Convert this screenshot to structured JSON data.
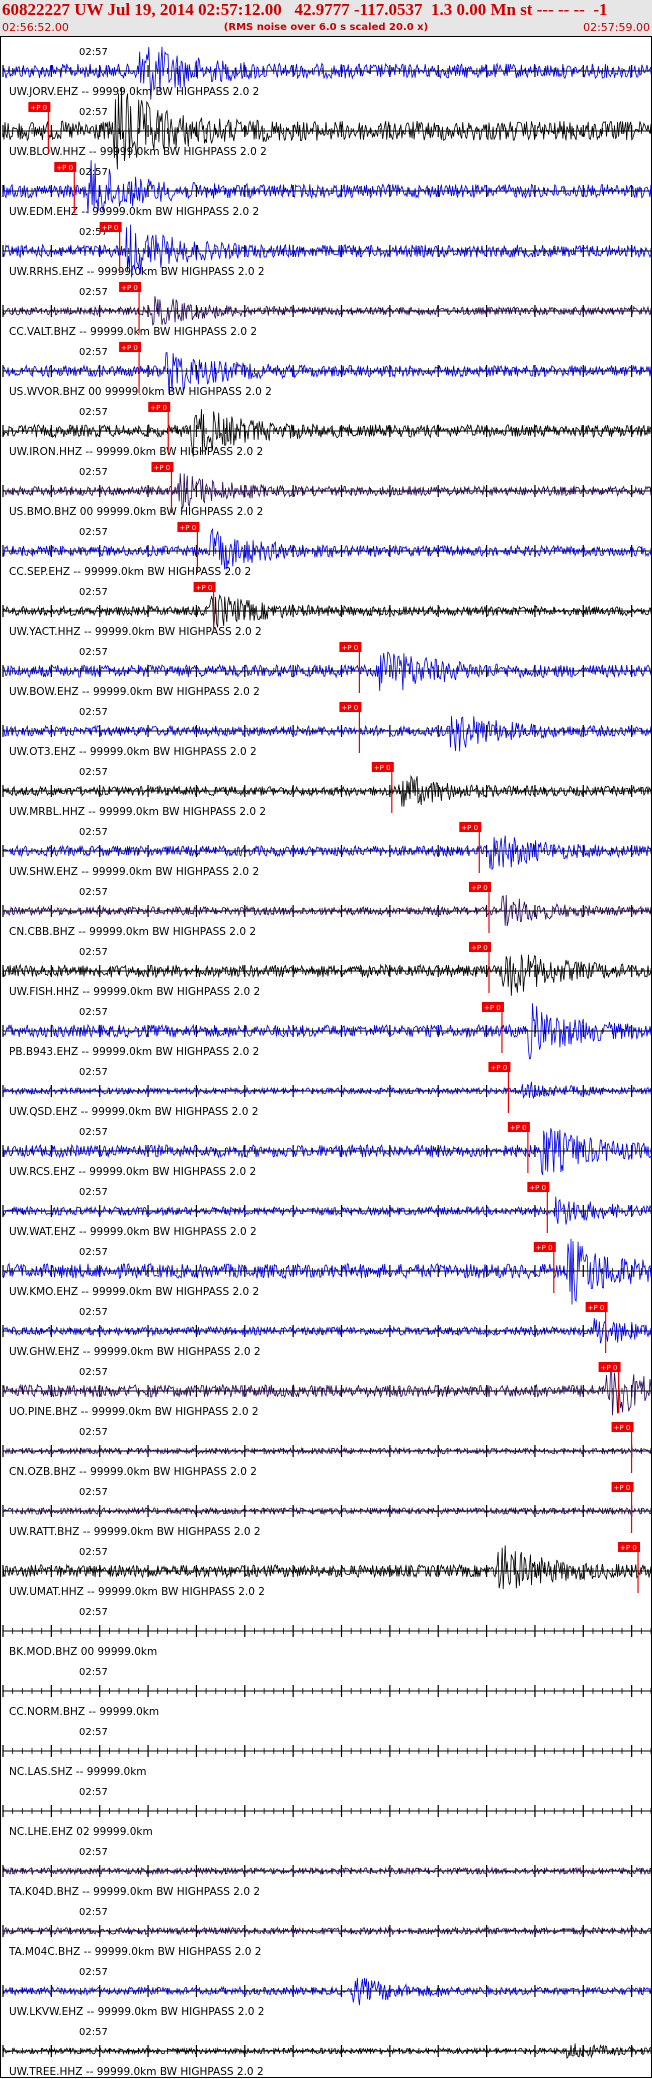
{
  "header": {
    "title": "60822227 UW Jul 19, 2014 02:57:12.00   42.9777 -117.0537  1.3 0.00 Mn st --- -- --  -1",
    "time_start": "02:56:52.00",
    "rms_note": "(RMS noise over 6.0 s scaled 20.0 x)",
    "time_end": "02:57:59.00"
  },
  "colors": {
    "red": "#cc0000",
    "blue": "#0000e6",
    "black": "#000000",
    "purple": "#2a0a5c",
    "pick_fill": "#ee0000"
  },
  "chart_data": {
    "type": "line",
    "title": "60822227 UW Jul 19, 2014 02:57:12.00   42.9777 -117.0537  1.3 0.00 Mn st --- -- --  -1",
    "x_range": [
      "02:56:52.00",
      "02:57:59.00"
    ],
    "tick_label": "02:57",
    "pick_label": "+P 0",
    "traces": [
      {
        "label": "UW.JORV.EHZ -- 99999.0km BW  HIGHPASS  2.0  2",
        "color": "blue",
        "amp": 0.55,
        "event": 0.22,
        "pick": null
      },
      {
        "label": "UW.BLOW.HHZ -- 99999.0km BW  HIGHPASS  2.0  2",
        "color": "black",
        "amp": 0.8,
        "event": 0.18,
        "pick": 0.07
      },
      {
        "label": "UW.EDM.EHZ -- 99999.0km BW  HIGHPASS  2.0  2",
        "color": "blue",
        "amp": 0.5,
        "event": 0.14,
        "pick": 0.11
      },
      {
        "label": "UW.RRHS.EHZ -- 99999.0km BW  HIGHPASS  2.0  2",
        "color": "blue",
        "amp": 0.45,
        "event": 0.2,
        "pick": 0.18
      },
      {
        "label": "CC.VALT.BHZ -- 99999.0km BW  HIGHPASS  2.0  2",
        "color": "purple",
        "amp": 0.25,
        "event": 0.24,
        "pick": 0.21
      },
      {
        "label": "US.WVOR.BHZ 00 99999.0km BW  HIGHPASS  2.0  2",
        "color": "blue",
        "amp": 0.4,
        "event": 0.26,
        "pick": 0.21
      },
      {
        "label": "UW.IRON.HHZ -- 99999.0km BW  HIGHPASS  2.0  2",
        "color": "black",
        "amp": 0.45,
        "event": 0.3,
        "pick": 0.255
      },
      {
        "label": "US.BMO.BHZ 00 99999.0km BW  HIGHPASS  2.0  2",
        "color": "purple",
        "amp": 0.3,
        "event": 0.28,
        "pick": 0.26
      },
      {
        "label": "CC.SEP.EHZ -- 99999.0km BW  HIGHPASS  2.0  2",
        "color": "blue",
        "amp": 0.35,
        "event": 0.33,
        "pick": 0.3
      },
      {
        "label": "UW.YACT.HHZ -- 99999.0km BW  HIGHPASS  2.0  2",
        "color": "black",
        "amp": 0.3,
        "event": 0.33,
        "pick": 0.325
      },
      {
        "label": "UW.BOW.EHZ -- 99999.0km BW  HIGHPASS  2.0  2",
        "color": "blue",
        "amp": 0.45,
        "event": 0.59,
        "pick": 0.55
      },
      {
        "label": "UW.OT3.EHZ -- 99999.0km BW  HIGHPASS  2.0  2",
        "color": "blue",
        "amp": 0.35,
        "event": 0.7,
        "pick": 0.55
      },
      {
        "label": "UW.MRBL.HHZ -- 99999.0km BW  HIGHPASS  2.0  2",
        "color": "black",
        "amp": 0.3,
        "event": 0.62,
        "pick": 0.6
      },
      {
        "label": "UW.SHW.EHZ -- 99999.0km BW  HIGHPASS  2.0  2",
        "color": "blue",
        "amp": 0.35,
        "event": 0.76,
        "pick": 0.735
      },
      {
        "label": "CN.CBB.BHZ -- 99999.0km BW  HIGHPASS  2.0  2",
        "color": "purple",
        "amp": 0.25,
        "event": 0.78,
        "pick": 0.75
      },
      {
        "label": "UW.FISH.HHZ -- 99999.0km BW  HIGHPASS  2.0  2",
        "color": "black",
        "amp": 0.45,
        "event": 0.78,
        "pick": 0.75
      },
      {
        "label": "PB.B943.EHZ -- 99999.0km BW  HIGHPASS  2.0  2",
        "color": "blue",
        "amp": 0.45,
        "event": 0.82,
        "pick": 0.77
      },
      {
        "label": "UW.QSD.EHZ -- 99999.0km BW  HIGHPASS  2.0  2",
        "color": "blue",
        "amp": 0.15,
        "event": 0.81,
        "pick": 0.78
      },
      {
        "label": "UW.RCS.EHZ -- 99999.0km BW  HIGHPASS  2.0  2",
        "color": "blue",
        "amp": 0.45,
        "event": 0.84,
        "pick": 0.81
      },
      {
        "label": "UW.WAT.EHZ -- 99999.0km BW  HIGHPASS  2.0  2",
        "color": "blue",
        "amp": 0.25,
        "event": 0.86,
        "pick": 0.84
      },
      {
        "label": "UW.KMO.EHZ -- 99999.0km BW  HIGHPASS  2.0  2",
        "color": "blue",
        "amp": 0.55,
        "event": 0.88,
        "pick": 0.85
      },
      {
        "label": "UW.GHW.EHZ -- 99999.0km BW  HIGHPASS  2.0  2",
        "color": "blue",
        "amp": 0.25,
        "event": 0.92,
        "pick": 0.93
      },
      {
        "label": "UO.PINE.BHZ -- 99999.0km BW  HIGHPASS  2.0  2",
        "color": "purple",
        "amp": 0.45,
        "event": 0.94,
        "pick": 0.95
      },
      {
        "label": "CN.OZB.BHZ -- 99999.0km BW  HIGHPASS  2.0  2",
        "color": "purple",
        "amp": 0.12,
        "event": null,
        "pick": 0.97
      },
      {
        "label": "UW.RATT.BHZ -- 99999.0km BW  HIGHPASS  2.0  2",
        "color": "purple",
        "amp": 0.15,
        "event": null,
        "pick": 0.97
      },
      {
        "label": "UW.UMAT.HHZ -- 99999.0km BW  HIGHPASS  2.0  2",
        "color": "black",
        "amp": 0.45,
        "event": 0.77,
        "pick": 0.98
      },
      {
        "label": "BK.MOD.BHZ 00 99999.0km",
        "color": "black",
        "amp": 0.0,
        "event": null,
        "pick": null
      },
      {
        "label": "CC.NORM.BHZ -- 99999.0km",
        "color": "black",
        "amp": 0.0,
        "event": null,
        "pick": null
      },
      {
        "label": "NC.LAS.SHZ -- 99999.0km",
        "color": "black",
        "amp": 0.0,
        "event": null,
        "pick": null
      },
      {
        "label": "NC.LHE.EHZ 02 99999.0km",
        "color": "black",
        "amp": 0.0,
        "event": null,
        "pick": null
      },
      {
        "label": "TA.K04D.BHZ -- 99999.0km BW  HIGHPASS  2.0  2",
        "color": "purple",
        "amp": 0.15,
        "event": null,
        "pick": null
      },
      {
        "label": "TA.M04C.BHZ -- 99999.0km BW  HIGHPASS  2.0  2",
        "color": "purple",
        "amp": 0.18,
        "event": null,
        "pick": null
      },
      {
        "label": "UW.LKVW.EHZ -- 99999.0km BW  HIGHPASS  2.0  2",
        "color": "blue",
        "amp": 0.22,
        "event": 0.55,
        "pick": null
      },
      {
        "label": "UW.TREE.HHZ -- 99999.0km BW  HIGHPASS  2.0  2",
        "color": "black",
        "amp": 0.12,
        "event": 0.88,
        "pick": null
      }
    ]
  }
}
